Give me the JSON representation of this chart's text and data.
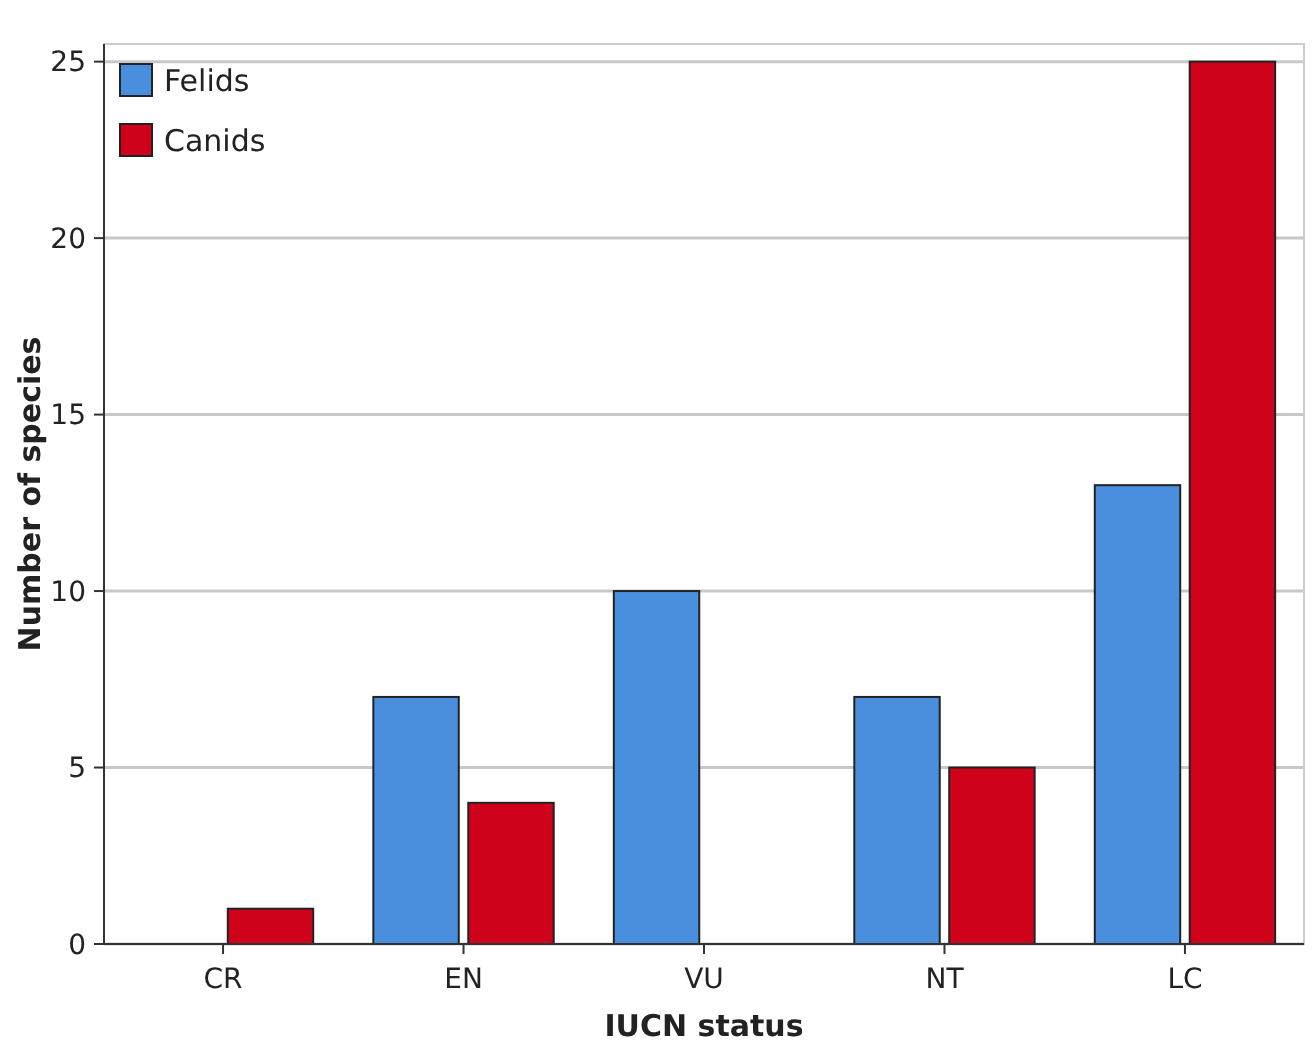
{
  "chart_data": {
    "type": "bar",
    "xlabel": "IUCN status",
    "ylabel": "Number of species",
    "categories": [
      "CR",
      "EN",
      "VU",
      "NT",
      "LC"
    ],
    "series": [
      {
        "name": "Felids",
        "color": "#4a8ede",
        "values": [
          0,
          7,
          10,
          7,
          13
        ]
      },
      {
        "name": "Canids",
        "color": "#d0021b",
        "values": [
          1,
          4,
          0,
          5,
          25
        ]
      }
    ],
    "ylim": [
      0,
      25.5
    ],
    "yticks": [
      0,
      5,
      10,
      15,
      20,
      25
    ],
    "grid": "y",
    "legend": "top left"
  }
}
